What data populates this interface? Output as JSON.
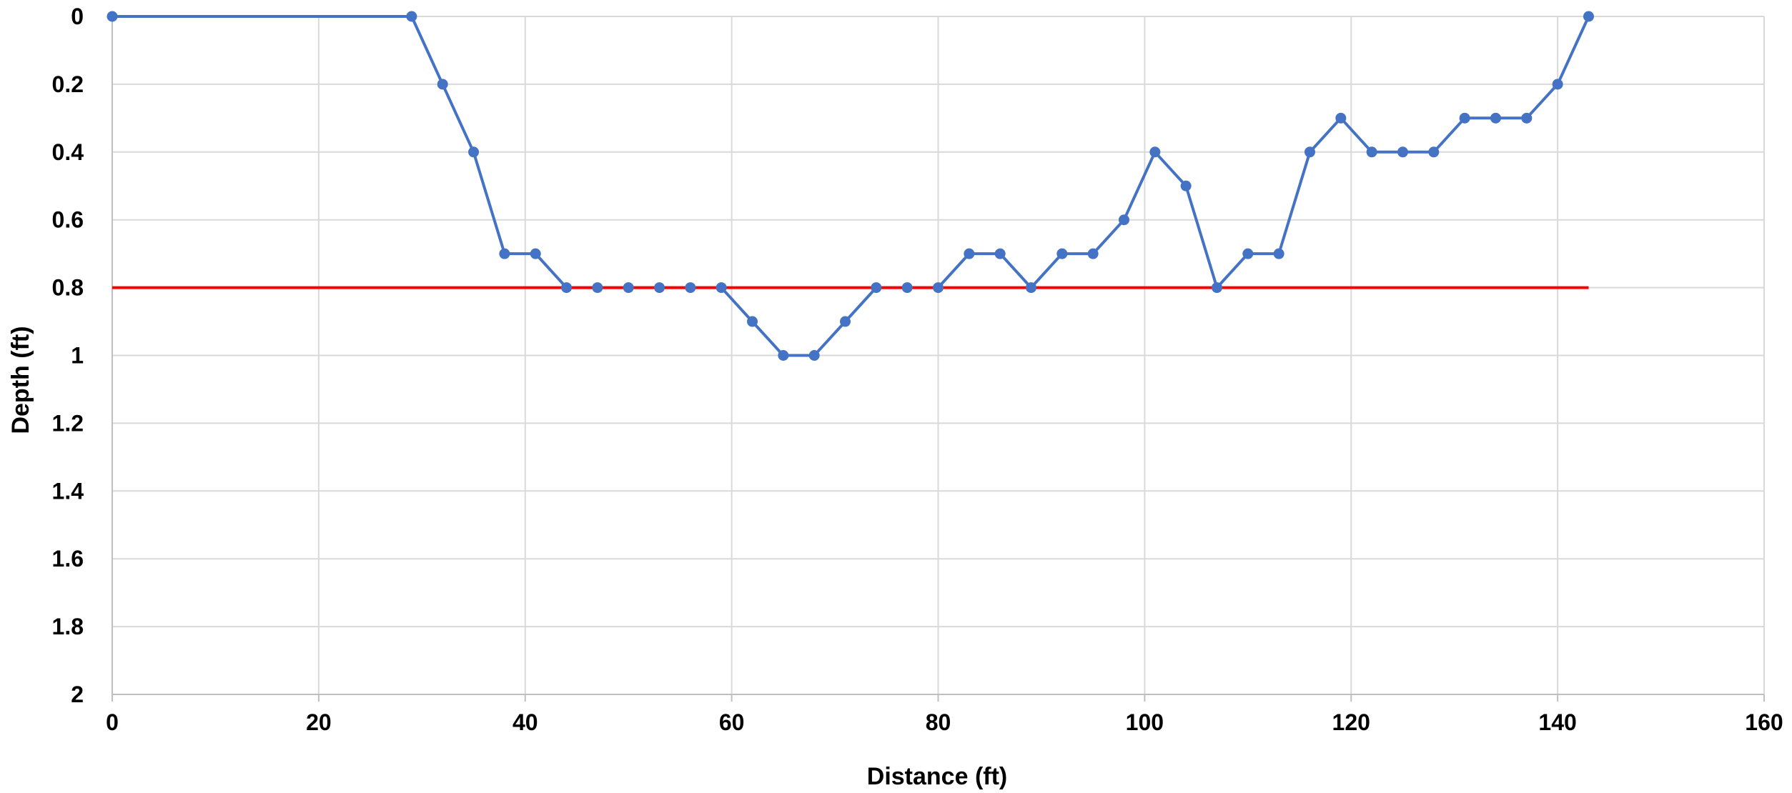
{
  "chart_data": {
    "type": "line",
    "xlabel": "Distance (ft)",
    "ylabel": "Depth (ft)",
    "xlim": [
      0,
      160
    ],
    "ylim": [
      0,
      2
    ],
    "y_inverted": true,
    "x_ticks": [
      "0",
      "20",
      "40",
      "60",
      "80",
      "100",
      "120",
      "140",
      "160"
    ],
    "y_ticks": [
      "0",
      "0.2",
      "0.4",
      "0.6",
      "0.8",
      "1",
      "1.2",
      "1.4",
      "1.6",
      "1.8",
      "2"
    ],
    "grid": true,
    "legend": "none",
    "series": [
      {
        "color": "#4472C4",
        "markers": true,
        "x": [
          0,
          29,
          32,
          35,
          38,
          41,
          44,
          47,
          50,
          53,
          56,
          59,
          62,
          65,
          68,
          71,
          74,
          77,
          80,
          83,
          86,
          89,
          92,
          95,
          98,
          101,
          104,
          107,
          110,
          113,
          116,
          119,
          122,
          125,
          128,
          131,
          134,
          137,
          140,
          143
        ],
        "y": [
          0,
          0,
          0.2,
          0.4,
          0.7,
          0.7,
          0.8,
          0.8,
          0.8,
          0.8,
          0.8,
          0.8,
          0.9,
          1.0,
          1.0,
          0.9,
          0.8,
          0.8,
          0.8,
          0.7,
          0.7,
          0.8,
          0.7,
          0.7,
          0.6,
          0.4,
          0.5,
          0.8,
          0.7,
          0.7,
          0.4,
          0.3,
          0.4,
          0.4,
          0.4,
          0.3,
          0.3,
          0.3,
          0.2,
          0
        ]
      },
      {
        "color": "#FF0000",
        "markers": false,
        "x": [
          0,
          143
        ],
        "y": [
          0.8,
          0.8
        ]
      }
    ]
  }
}
